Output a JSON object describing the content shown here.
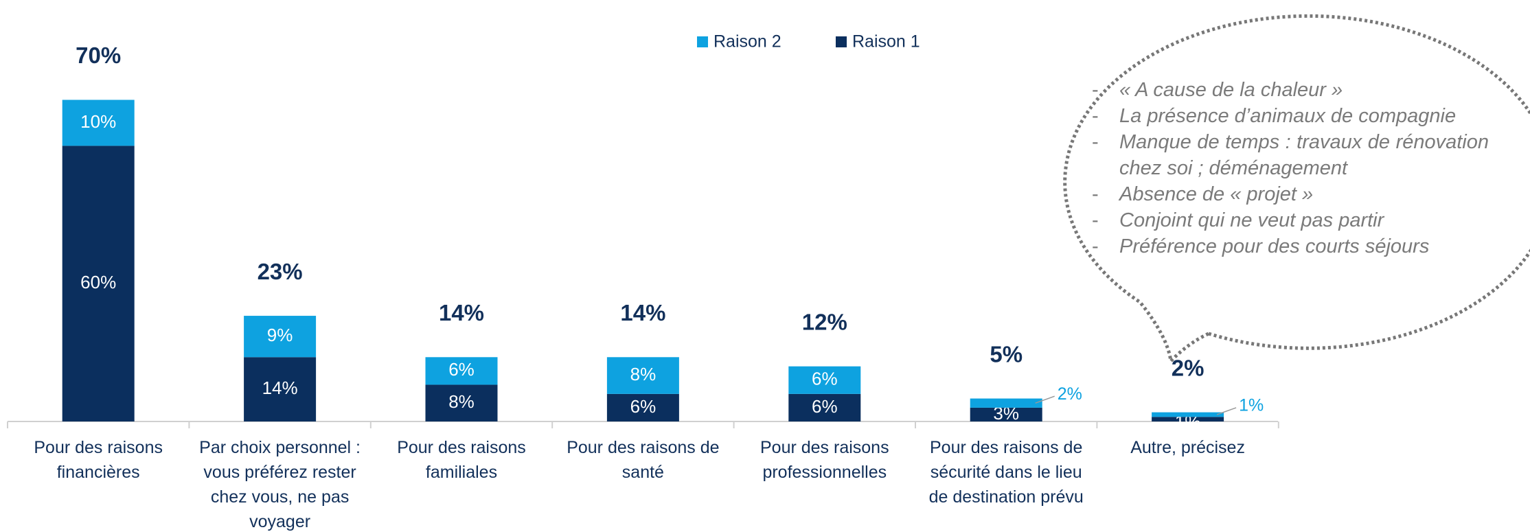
{
  "chart_data": {
    "type": "stacked_bar",
    "categories": [
      "Pour des raisons financières",
      "Par choix personnel : vous préférez rester chez vous, ne pas voyager",
      "Pour des raisons familiales",
      "Pour des raisons de santé",
      "Pour des raisons professionnelles",
      "Pour des raisons de sécurité dans le lieu de destination prévu",
      "Autre, précisez"
    ],
    "series": [
      {
        "name": "Raison 1",
        "color": "#0b2f5e",
        "values": [
          60,
          14,
          8,
          6,
          6,
          3,
          1
        ],
        "value_labels": [
          "60%",
          "14%",
          "8%",
          "6%",
          "6%",
          "3%",
          "1%"
        ]
      },
      {
        "name": "Raison 2",
        "color": "#0ea2e0",
        "values": [
          10,
          9,
          6,
          8,
          6,
          2,
          1
        ],
        "value_labels": [
          "10%",
          "9%",
          "6%",
          "8%",
          "6%",
          "2%",
          "1%"
        ]
      }
    ],
    "totals": [
      70,
      23,
      14,
      14,
      12,
      5,
      2
    ],
    "total_labels": [
      "70%",
      "23%",
      "14%",
      "14%",
      "12%",
      "5%",
      "2%"
    ],
    "ylim": [
      0,
      75
    ],
    "notes": [
      "« A cause de la chaleur »",
      "La présence d’animaux de compagnie",
      "Manque de temps : travaux de rénovation chez soi ; déménagement",
      "Absence de « projet »",
      "Conjoint qui ne veut pas partir",
      "Préférence pour des courts séjours"
    ]
  }
}
